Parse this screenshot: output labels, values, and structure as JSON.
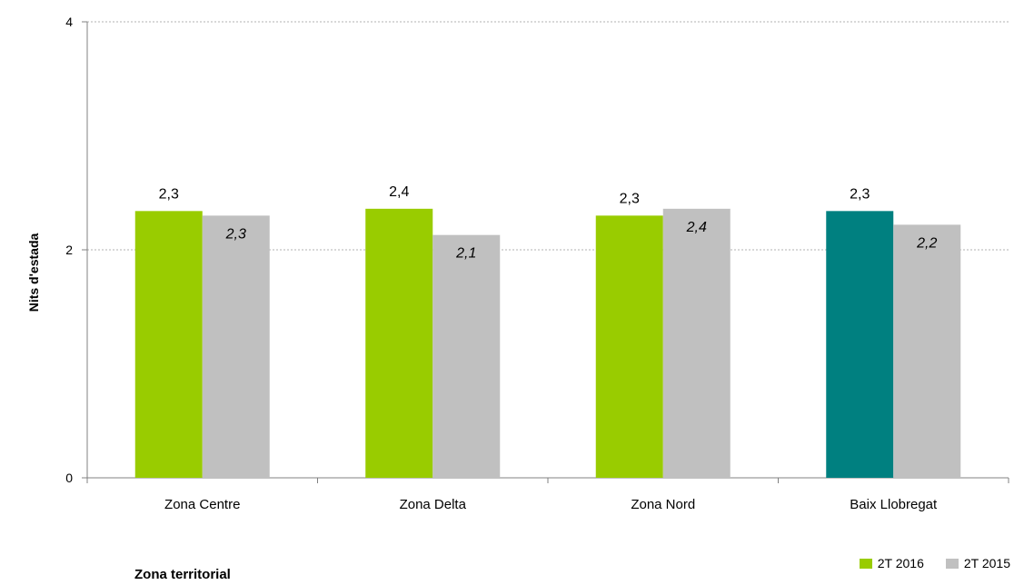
{
  "chart_data": {
    "type": "bar",
    "title": "",
    "xlabel": "Zona territorial",
    "ylabel": "Nits d'estada",
    "ylim": [
      0,
      4
    ],
    "yticks": [
      0,
      2,
      4
    ],
    "grid": true,
    "legend_position": "bottom-right",
    "categories": [
      "Zona Centre",
      "Zona Delta",
      "Zona Nord",
      "Baix Llobregat"
    ],
    "series": [
      {
        "name": "2T 2016",
        "values": [
          2.34,
          2.36,
          2.3,
          2.34
        ],
        "labels": [
          "2,3",
          "2,4",
          "2,3",
          "2,3"
        ],
        "color": "#99cc00",
        "highlight_color": "#008080",
        "highlight_index": 3
      },
      {
        "name": "2T 2015",
        "values": [
          2.3,
          2.13,
          2.36,
          2.22
        ],
        "labels": [
          "2,3",
          "2,1",
          "2,4",
          "2,2"
        ],
        "color": "#c0c0c0"
      }
    ]
  }
}
